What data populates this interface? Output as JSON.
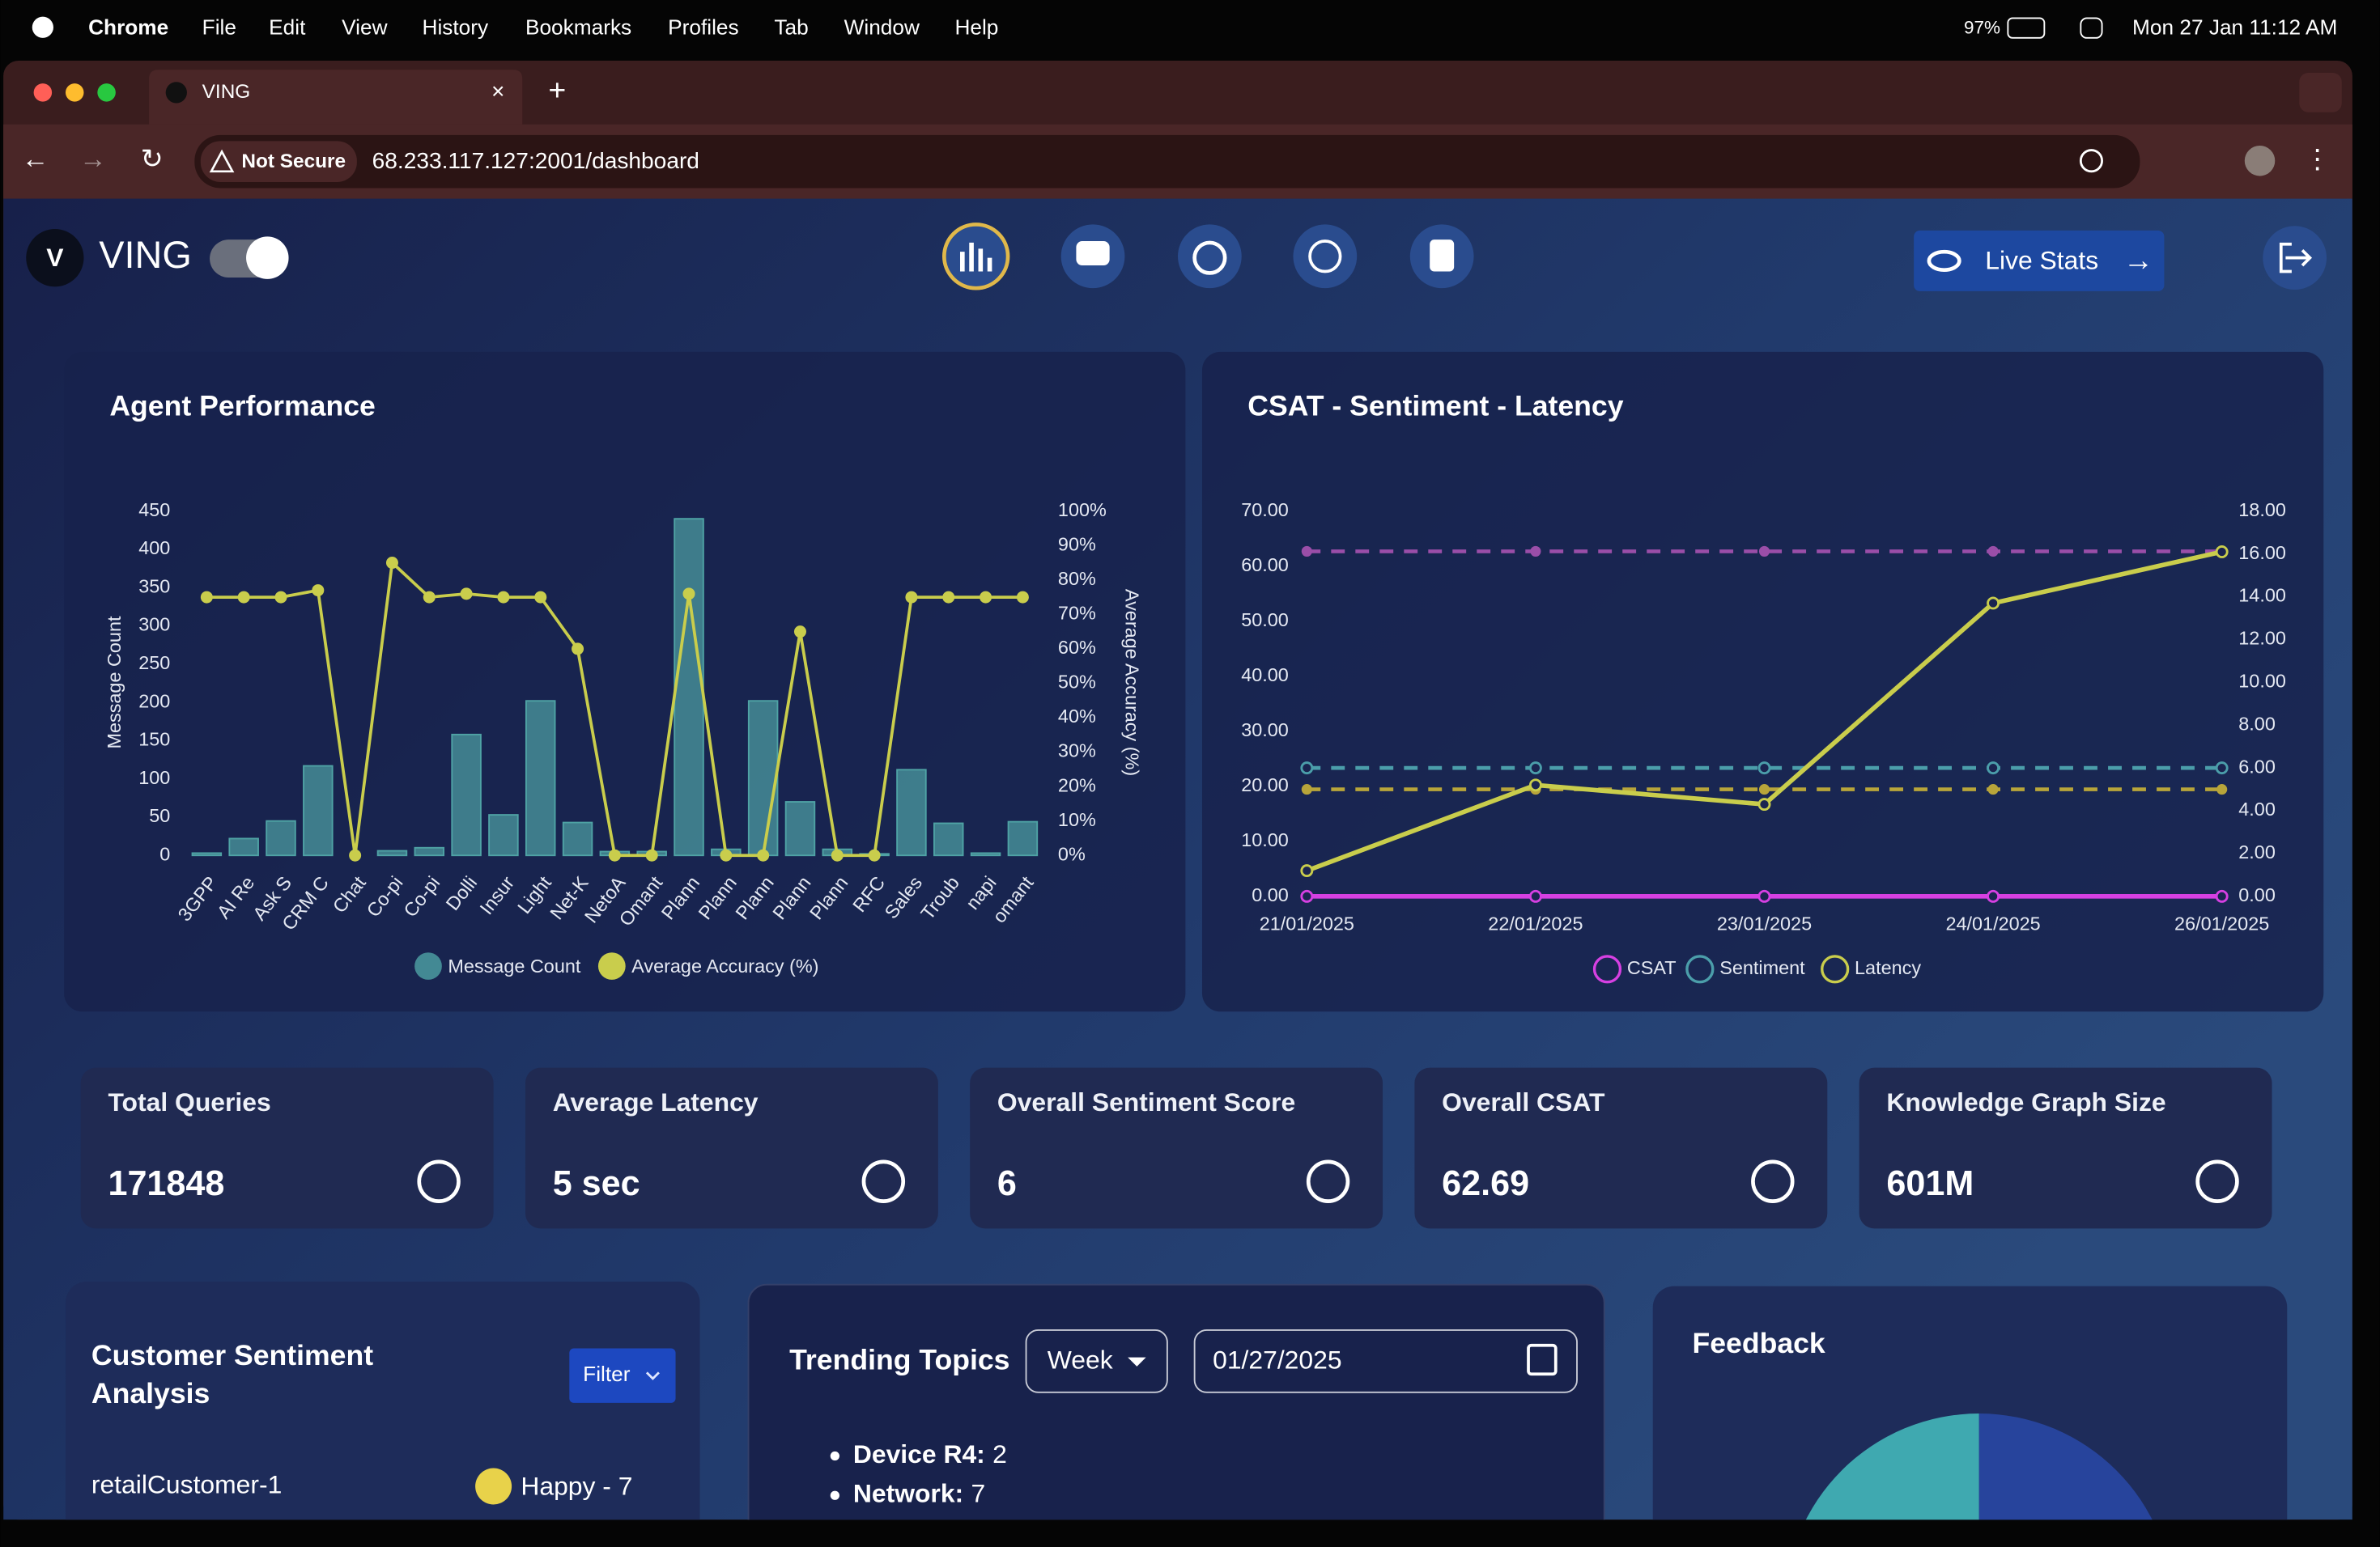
{
  "menu_bar": {
    "app": "Chrome",
    "items": [
      "File",
      "Edit",
      "View",
      "History",
      "Bookmarks",
      "Profiles",
      "Tab",
      "Window",
      "Help"
    ],
    "battery": "97%",
    "clock": "Mon 27 Jan  11:12 AM"
  },
  "browser": {
    "tab_title": "VING",
    "security": "Not Secure",
    "url": "68.233.117.127:2001/dashboard"
  },
  "header": {
    "brand": "VING",
    "live_stats": "Live Stats"
  },
  "agent_performance": {
    "type": "bar_line",
    "title": "Agent Performance",
    "categories": [
      "3GPP",
      "AI Re",
      "Ask S",
      "CRM C",
      "Chat",
      "Co-pi",
      "Co-pi",
      "Dolli",
      "Insur",
      "Light",
      "Net-K",
      "NetoA",
      "Omant",
      "Plann",
      "Plann",
      "Plann",
      "Plann",
      "Plann",
      "RFC",
      "Sales",
      "Troub",
      "napi",
      "omant"
    ],
    "series": [
      {
        "name": "Message Count",
        "color": "#4fa3a5",
        "type": "bar",
        "values": [
          3,
          22,
          45,
          117,
          0,
          6,
          10,
          158,
          53,
          202,
          43,
          5,
          5,
          440,
          8,
          202,
          70,
          8,
          2,
          112,
          42,
          3,
          44
        ]
      },
      {
        "name": "Average Accuracy (%)",
        "color": "#c9cd4c",
        "type": "line",
        "axis": "y2",
        "values": [
          75,
          75,
          75,
          77,
          0,
          85,
          75,
          76,
          75,
          75,
          60,
          0,
          0,
          76,
          0,
          0,
          65,
          0,
          0,
          75,
          75,
          75,
          75
        ]
      }
    ],
    "ylabel": "Message Count",
    "y2label": "Average Accuracy (%)",
    "ylim": [
      0,
      450
    ],
    "yticks": [
      0,
      50,
      100,
      150,
      200,
      250,
      300,
      350,
      400,
      450
    ],
    "y2lim": [
      0,
      100
    ],
    "y2ticks": [
      {
        "value": 0,
        "label": "0%"
      },
      {
        "value": 10,
        "label": "10%"
      },
      {
        "value": 20,
        "label": "20%"
      },
      {
        "value": 30,
        "label": "30%"
      },
      {
        "value": 40,
        "label": "40%"
      },
      {
        "value": 50,
        "label": "50%"
      },
      {
        "value": 60,
        "label": "60%"
      },
      {
        "value": 70,
        "label": "70%"
      },
      {
        "value": 80,
        "label": "80%"
      },
      {
        "value": 90,
        "label": "90%"
      },
      {
        "value": 100,
        "label": "100%"
      }
    ]
  },
  "csat_chart": {
    "type": "line",
    "title": "CSAT - Sentiment - Latency",
    "categories": [
      "21/01/2025",
      "22/01/2025",
      "23/01/2025",
      "24/01/2025",
      "26/01/2025"
    ],
    "series": [
      {
        "name": "CSAT",
        "color": "#d640e2",
        "values": [
          0,
          0,
          0,
          0,
          0
        ]
      },
      {
        "name": "Sentiment",
        "color": "#4b9eaa",
        "axis": "y2",
        "dashed": true,
        "values": [
          6,
          6,
          6,
          6,
          6
        ]
      },
      {
        "name": "Latency",
        "color": "#c9cd4c",
        "axis": "y2",
        "values": [
          1.2,
          5.2,
          4.3,
          13.7,
          16.1
        ]
      }
    ],
    "reference_lines": [
      {
        "value": 62.69,
        "color": "#9a4ea8"
      },
      {
        "value": 5,
        "color": "#b8a53a",
        "axis": "y2"
      }
    ],
    "ylim": [
      0,
      70
    ],
    "yticks": [
      {
        "value": 0,
        "label": "0.00"
      },
      {
        "value": 10,
        "label": "10.00"
      },
      {
        "value": 20,
        "label": "20.00"
      },
      {
        "value": 30,
        "label": "30.00"
      },
      {
        "value": 40,
        "label": "40.00"
      },
      {
        "value": 50,
        "label": "50.00"
      },
      {
        "value": 60,
        "label": "60.00"
      },
      {
        "value": 70,
        "label": "70.00"
      }
    ],
    "y2lim": [
      0,
      18
    ],
    "y2ticks": [
      {
        "value": 0,
        "label": "0.00"
      },
      {
        "value": 2,
        "label": "2.00"
      },
      {
        "value": 4,
        "label": "4.00"
      },
      {
        "value": 6,
        "label": "6.00"
      },
      {
        "value": 8,
        "label": "8.00"
      },
      {
        "value": 10,
        "label": "10.00"
      },
      {
        "value": 12,
        "label": "12.00"
      },
      {
        "value": 14,
        "label": "14.00"
      },
      {
        "value": 16,
        "label": "16.00"
      },
      {
        "value": 18,
        "label": "18.00"
      }
    ]
  },
  "kpis": [
    {
      "title": "Total Queries",
      "value": "171848"
    },
    {
      "title": "Average Latency",
      "value": "5 sec"
    },
    {
      "title": "Overall Sentiment Score",
      "value": "6"
    },
    {
      "title": "Overall CSAT",
      "value": "62.69"
    },
    {
      "title": "Knowledge Graph Size",
      "value": "601M"
    }
  ],
  "sentiment_panel": {
    "title_lines": [
      "Customer Sentiment",
      "Analysis"
    ],
    "filter": "Filter",
    "rows": [
      {
        "customer": "retailCustomer-1",
        "sentiment": "Happy - 7"
      }
    ]
  },
  "trending": {
    "title": "Trending Topics",
    "period": "Week",
    "date": "01/27/2025",
    "topics": [
      {
        "label": "Device R4:",
        "count": 2
      },
      {
        "label": "Network:",
        "count": 7
      }
    ]
  },
  "feedback": {
    "title": "Feedback"
  }
}
